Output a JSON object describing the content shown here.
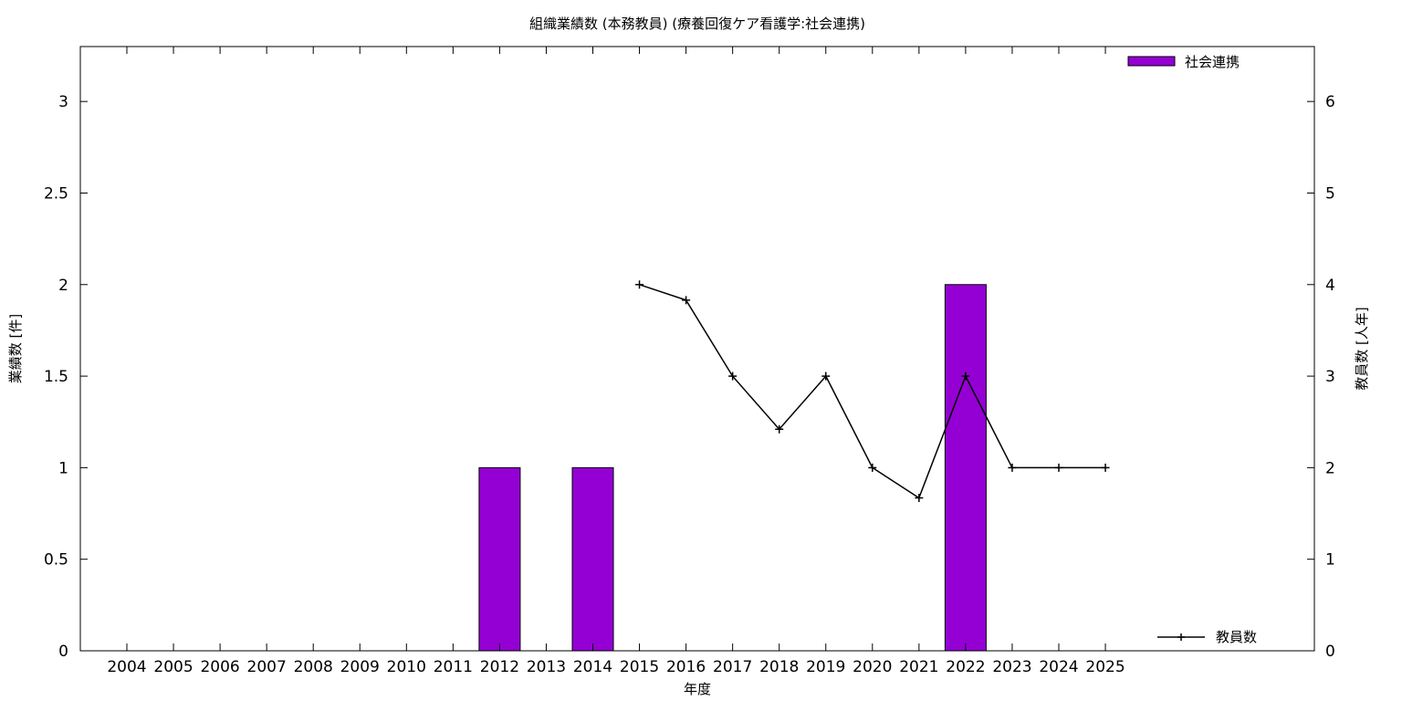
{
  "chart_data": {
    "type": "bar",
    "title": "組織業績数 (本務教員) (療養回復ケア看護学:社会連携)",
    "xlabel": "年度",
    "ylabel_left": "業績数 [件]",
    "ylabel_right": "教員数 [人年]",
    "categories": [
      "2004",
      "2005",
      "2006",
      "2007",
      "2008",
      "2009",
      "2010",
      "2011",
      "2012",
      "2013",
      "2014",
      "2015",
      "2016",
      "2017",
      "2018",
      "2019",
      "2020",
      "2021",
      "2022",
      "2023",
      "2024",
      "2025"
    ],
    "y_left_ticks": [
      "0",
      "0.5",
      "1",
      "1.5",
      "2",
      "2.5",
      "3"
    ],
    "y_right_ticks": [
      "0",
      "1",
      "2",
      "3",
      "4",
      "5",
      "6"
    ],
    "ylim_left": [
      0,
      3.3
    ],
    "ylim_right": [
      0,
      6.6
    ],
    "grid": false,
    "legend_bar_position": "top-right",
    "legend_line_position": "bottom-right",
    "series": [
      {
        "name": "社会連携",
        "type": "bar",
        "axis": "left",
        "color": "#9400d3",
        "values": [
          0,
          0,
          0,
          0,
          0,
          0,
          0,
          0,
          1,
          0,
          1,
          0,
          0,
          0,
          0,
          0,
          0,
          0,
          2,
          0,
          0,
          0
        ]
      },
      {
        "name": "教員数",
        "type": "line",
        "axis": "right",
        "color": "#000000",
        "marker": "plus",
        "values": [
          null,
          null,
          null,
          null,
          null,
          null,
          null,
          null,
          null,
          null,
          null,
          4.0,
          3.83,
          3.0,
          2.42,
          3.0,
          2.0,
          1.67,
          3.0,
          2.0,
          2.0,
          2.0
        ]
      }
    ]
  }
}
